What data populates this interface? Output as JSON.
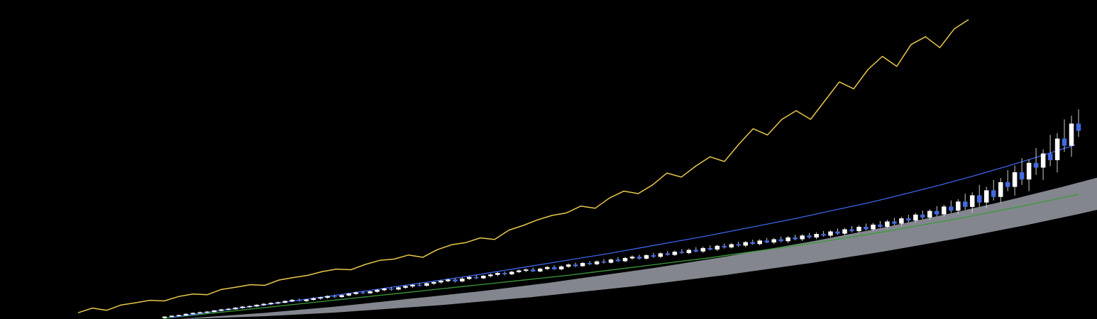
{
  "chart_data": {
    "type": "candlestick-ichimoku",
    "title": "",
    "xlabel": "",
    "ylabel": "",
    "grid": false,
    "legend": "none",
    "ylim": [
      0,
      1000
    ],
    "colors": {
      "background": "#000000",
      "candle_up": "#ffffff",
      "candle_down": "#4169e1",
      "wick": "#cccccc",
      "kijun_sen": "#3b63e6",
      "tenkan_green": "#3a9a3a",
      "chikou_span": "#e8c84a",
      "kumo_cloud": "#8a8d96"
    },
    "candles_ohlc": [
      [
        4,
        9,
        1,
        7
      ],
      [
        7,
        12,
        5,
        10
      ],
      [
        10,
        14,
        8,
        12
      ],
      [
        12,
        18,
        9,
        16
      ],
      [
        16,
        21,
        14,
        19
      ],
      [
        19,
        24,
        17,
        21
      ],
      [
        21,
        26,
        18,
        23
      ],
      [
        23,
        29,
        21,
        27
      ],
      [
        27,
        33,
        24,
        30
      ],
      [
        30,
        35,
        27,
        32
      ],
      [
        32,
        38,
        30,
        36
      ],
      [
        36,
        42,
        33,
        39
      ],
      [
        39,
        44,
        36,
        41
      ],
      [
        41,
        47,
        38,
        45
      ],
      [
        45,
        51,
        42,
        48
      ],
      [
        48,
        54,
        45,
        51
      ],
      [
        51,
        56,
        47,
        53
      ],
      [
        53,
        60,
        50,
        57
      ],
      [
        57,
        64,
        54,
        61
      ],
      [
        61,
        66,
        56,
        58
      ],
      [
        58,
        64,
        55,
        62
      ],
      [
        62,
        70,
        59,
        66
      ],
      [
        66,
        72,
        62,
        69
      ],
      [
        69,
        76,
        65,
        73
      ],
      [
        73,
        78,
        68,
        71
      ],
      [
        71,
        79,
        68,
        76
      ],
      [
        76,
        84,
        73,
        81
      ],
      [
        81,
        88,
        77,
        85
      ],
      [
        85,
        90,
        80,
        83
      ],
      [
        83,
        91,
        81,
        88
      ],
      [
        88,
        96,
        84,
        93
      ],
      [
        93,
        100,
        89,
        97
      ],
      [
        97,
        103,
        91,
        95
      ],
      [
        95,
        104,
        92,
        101
      ],
      [
        101,
        108,
        97,
        105
      ],
      [
        105,
        112,
        100,
        109
      ],
      [
        109,
        116,
        104,
        107
      ],
      [
        107,
        117,
        104,
        114
      ],
      [
        114,
        120,
        109,
        118
      ],
      [
        118,
        126,
        113,
        122
      ],
      [
        122,
        130,
        118,
        126
      ],
      [
        126,
        131,
        117,
        121
      ],
      [
        121,
        133,
        118,
        129
      ],
      [
        129,
        138,
        125,
        134
      ],
      [
        134,
        142,
        128,
        131
      ],
      [
        131,
        141,
        128,
        138
      ],
      [
        138,
        146,
        133,
        142
      ],
      [
        142,
        151,
        137,
        147
      ],
      [
        147,
        152,
        140,
        144
      ],
      [
        144,
        155,
        141,
        151
      ],
      [
        151,
        159,
        147,
        155
      ],
      [
        155,
        162,
        150,
        158
      ],
      [
        158,
        165,
        151,
        153
      ],
      [
        153,
        164,
        150,
        161
      ],
      [
        161,
        170,
        157,
        166
      ],
      [
        166,
        172,
        158,
        160
      ],
      [
        160,
        172,
        156,
        168
      ],
      [
        168,
        178,
        164,
        174
      ],
      [
        174,
        181,
        166,
        170
      ],
      [
        170,
        183,
        167,
        179
      ],
      [
        179,
        186,
        173,
        176
      ],
      [
        176,
        188,
        172,
        184
      ],
      [
        184,
        192,
        178,
        181
      ],
      [
        181,
        194,
        178,
        190
      ],
      [
        190,
        198,
        183,
        186
      ],
      [
        186,
        199,
        182,
        195
      ],
      [
        195,
        204,
        190,
        199
      ],
      [
        199,
        206,
        191,
        194
      ],
      [
        194,
        208,
        190,
        204
      ],
      [
        204,
        212,
        196,
        200
      ],
      [
        200,
        214,
        196,
        210
      ],
      [
        210,
        218,
        203,
        206
      ],
      [
        206,
        220,
        202,
        215
      ],
      [
        215,
        224,
        209,
        212
      ],
      [
        212,
        226,
        208,
        221
      ],
      [
        221,
        230,
        214,
        217
      ],
      [
        217,
        232,
        212,
        227
      ],
      [
        227,
        236,
        220,
        223
      ],
      [
        223,
        238,
        218,
        234
      ],
      [
        234,
        242,
        226,
        230
      ],
      [
        230,
        244,
        226,
        239
      ],
      [
        239,
        248,
        231,
        236
      ],
      [
        236,
        250,
        230,
        246
      ],
      [
        246,
        254,
        238,
        241
      ],
      [
        241,
        256,
        236,
        251
      ],
      [
        251,
        260,
        243,
        246
      ],
      [
        246,
        260,
        240,
        255
      ],
      [
        255,
        264,
        246,
        250
      ],
      [
        250,
        266,
        244,
        261
      ],
      [
        261,
        270,
        252,
        256
      ],
      [
        256,
        272,
        250,
        267
      ],
      [
        267,
        276,
        258,
        262
      ],
      [
        262,
        278,
        256,
        272
      ],
      [
        272,
        282,
        264,
        268
      ],
      [
        268,
        285,
        262,
        280
      ],
      [
        280,
        290,
        270,
        274
      ],
      [
        274,
        292,
        268,
        287
      ],
      [
        287,
        298,
        278,
        282
      ],
      [
        282,
        300,
        276,
        295
      ],
      [
        295,
        306,
        284,
        288
      ],
      [
        288,
        308,
        282,
        302
      ],
      [
        302,
        314,
        292,
        296
      ],
      [
        296,
        318,
        290,
        312
      ],
      [
        312,
        324,
        300,
        306
      ],
      [
        306,
        328,
        298,
        322
      ],
      [
        322,
        334,
        310,
        316
      ],
      [
        316,
        340,
        308,
        334
      ],
      [
        334,
        348,
        320,
        326
      ],
      [
        326,
        352,
        318,
        346
      ],
      [
        346,
        362,
        330,
        336
      ],
      [
        336,
        366,
        328,
        360
      ],
      [
        360,
        380,
        340,
        348
      ],
      [
        348,
        384,
        336,
        376
      ],
      [
        376,
        402,
        350,
        360
      ],
      [
        360,
        406,
        340,
        396
      ],
      [
        396,
        430,
        360,
        374
      ],
      [
        374,
        424,
        356,
        412
      ],
      [
        412,
        446,
        380,
        392
      ],
      [
        392,
        452,
        372,
        438
      ],
      [
        438,
        478,
        410,
        424
      ],
      [
        424,
        492,
        396,
        470
      ],
      [
        470,
        516,
        430,
        448
      ],
      [
        448,
        512,
        410,
        500
      ],
      [
        500,
        548,
        462,
        486
      ],
      [
        486,
        544,
        446,
        530
      ],
      [
        530,
        590,
        490,
        510
      ],
      [
        510,
        596,
        470,
        578
      ],
      [
        578,
        640,
        536,
        556
      ],
      [
        556,
        652,
        520,
        626
      ],
      [
        626,
        672,
        584,
        604
      ]
    ],
    "chikou_span_values": [
      20,
      35,
      28,
      45,
      52,
      60,
      58,
      72,
      80,
      78,
      95,
      102,
      110,
      108,
      125,
      133,
      140,
      152,
      160,
      158,
      175,
      188,
      192,
      205,
      198,
      222,
      238,
      245,
      260,
      255,
      285,
      300,
      318,
      332,
      340,
      362,
      355,
      388,
      410,
      402,
      430,
      468,
      455,
      490,
      520,
      505,
      560,
      610,
      590,
      640,
      668,
      640,
      700,
      760,
      738,
      800,
      842,
      810,
      880,
      905,
      870,
      930,
      960
    ],
    "kijun_values": [
      5,
      12,
      20,
      28,
      35,
      42,
      50,
      57,
      65,
      72,
      80,
      88,
      96,
      104,
      112,
      120,
      128,
      136,
      145,
      154,
      163,
      172,
      181,
      190,
      199,
      208,
      218,
      228,
      238,
      248,
      258,
      268,
      279,
      290,
      301,
      312,
      323,
      335,
      347,
      359,
      371,
      384,
      398,
      412,
      426,
      441,
      456,
      472,
      488,
      505,
      522,
      540,
      558
    ],
    "green_line_values": [
      2,
      8,
      14,
      20,
      26,
      32,
      38,
      44,
      50,
      56,
      62,
      68,
      74,
      80,
      86,
      92,
      98,
      104,
      110,
      116,
      122,
      128,
      134,
      140,
      147,
      154,
      161,
      168,
      175,
      182,
      189,
      196,
      204,
      212,
      220,
      228,
      236,
      244,
      253,
      262,
      271,
      280,
      290,
      300,
      310,
      320,
      331,
      342,
      353,
      364,
      376,
      388,
      400
    ],
    "cloud_upper": [
      0,
      4,
      8,
      12,
      16,
      20,
      25,
      30,
      35,
      40,
      46,
      52,
      58,
      64,
      70,
      76,
      82,
      88,
      95,
      102,
      109,
      116,
      124,
      132,
      140,
      148,
      156,
      164,
      173,
      182,
      191,
      200,
      210,
      220,
      230,
      240,
      250,
      261,
      272,
      283,
      294,
      306,
      318,
      330,
      342,
      355,
      368,
      381,
      395,
      409,
      423,
      438,
      453
    ],
    "cloud_lower": [
      0,
      1,
      3,
      5,
      7,
      9,
      12,
      15,
      18,
      21,
      25,
      29,
      33,
      37,
      41,
      45,
      50,
      55,
      60,
      65,
      70,
      76,
      82,
      88,
      94,
      100,
      106,
      113,
      120,
      127,
      134,
      141,
      149,
      157,
      165,
      173,
      181,
      190,
      199,
      208,
      217,
      227,
      237,
      247,
      257,
      268,
      279,
      290,
      301,
      313,
      325,
      337,
      350
    ]
  }
}
